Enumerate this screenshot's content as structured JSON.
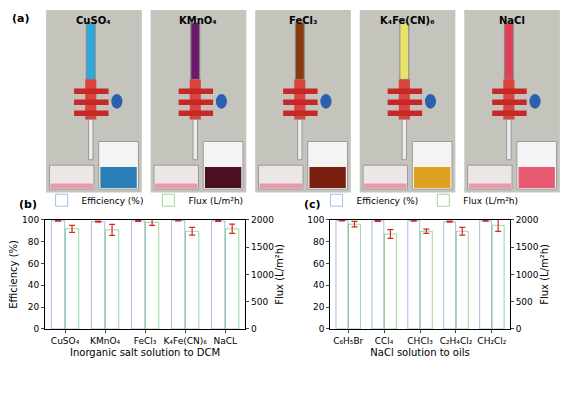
{
  "panel_a": {
    "label": "(a)",
    "captions": [
      "CuSO₄",
      "KMnO₄",
      "FeCl₃",
      "K₄Fe(CN)₆",
      "NaCl"
    ]
  },
  "chart_data": [
    {
      "type": "bar",
      "annotations": [
        "(b)"
      ],
      "categories": [
        "CuSO₄",
        "KMnO₄",
        "FeCl₃",
        "K₄Fe(CN)₆",
        "NaCL"
      ],
      "x_label": "Inorganic salt solution to DCM",
      "y_label": "Efficiency (%)",
      "y2_label": "Flux (L/m²h)",
      "series": [
        {
          "name": "Efficiency (%)",
          "color": "#4f7fc4",
          "values": [
            99.1,
            98.4,
            99.0,
            99.3,
            99.0
          ],
          "errors": [
            0.4,
            0.5,
            0.4,
            0.3,
            0.4
          ]
        },
        {
          "name": "Flux (L/m²h)",
          "color": "#3cae3c",
          "axis": "y2",
          "values": [
            1835,
            1815,
            1955,
            1790,
            1835
          ],
          "errors": [
            65,
            100,
            55,
            70,
            85
          ]
        }
      ],
      "ylim": [
        0,
        100
      ],
      "yticks": [
        0,
        20,
        40,
        60,
        80,
        100
      ],
      "y2lim": [
        0,
        2000
      ],
      "y2ticks": [
        0,
        500,
        1000,
        1500,
        2000
      ],
      "grid": false,
      "legend": "top"
    },
    {
      "type": "bar",
      "annotations": [
        "(c)"
      ],
      "categories": [
        "C₆H₅Br",
        "CCl₄",
        "CHCl₃",
        "C₂H₄Cl₂",
        "CH₂Cl₂"
      ],
      "x_label": "NaCl solution to oils",
      "y2_label": "Flux (L/m²h)",
      "series": [
        {
          "name": "Efficiency (%)",
          "color": "#4f7fc4",
          "values": [
            99.3,
            99.0,
            99.2,
            98.3,
            99.1
          ],
          "errors": [
            0.3,
            0.4,
            0.3,
            0.5,
            0.4
          ]
        },
        {
          "name": "Flux (L/m²h)",
          "color": "#3cae3c",
          "axis": "y2",
          "values": [
            1920,
            1740,
            1790,
            1790,
            1900
          ],
          "errors": [
            50,
            80,
            40,
            70,
            110
          ]
        }
      ],
      "ylim": [
        0,
        100
      ],
      "yticks": [
        0,
        20,
        40,
        60,
        80,
        100
      ],
      "y2lim": [
        0,
        2000
      ],
      "y2ticks": [
        0,
        500,
        1000,
        1500,
        2000
      ],
      "grid": false,
      "legend": "top"
    }
  ]
}
